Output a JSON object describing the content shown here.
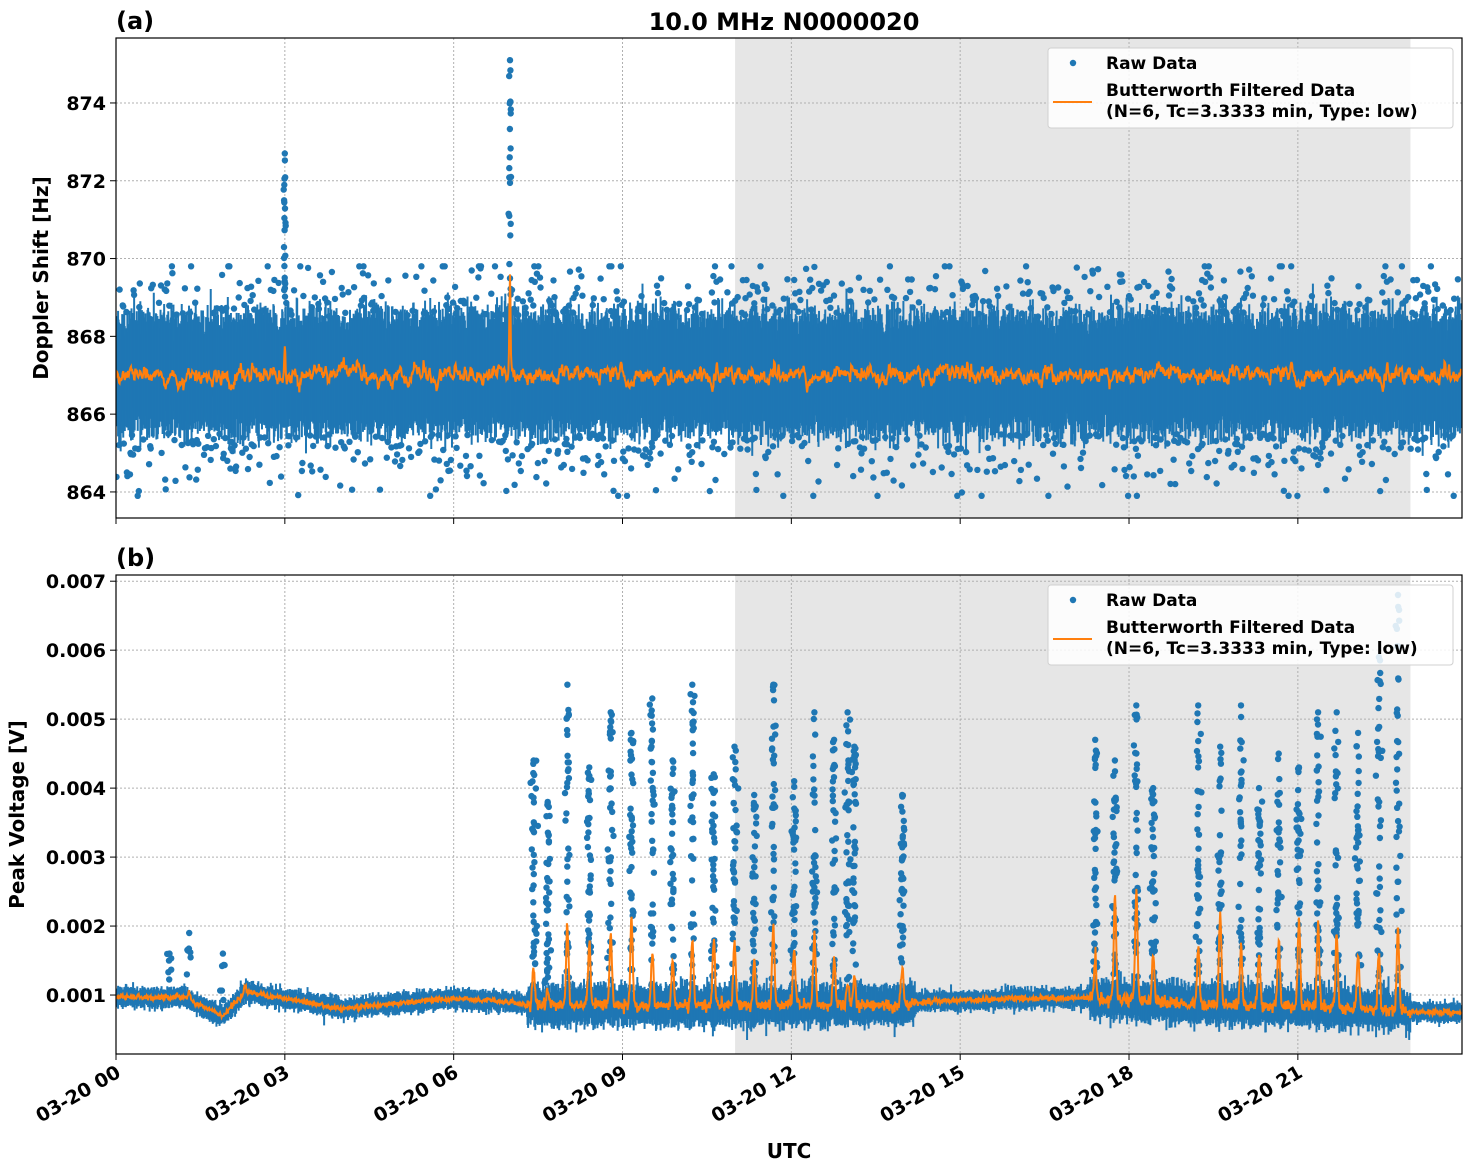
{
  "chart_data": [
    {
      "type": "scatter",
      "panel_label": "(a)",
      "title": "10.0 MHz N0000020",
      "xlabel": "",
      "ylabel": "Doppler Shift [Hz]",
      "xlim": [
        "03-20 00:00",
        "03-20 23:55"
      ],
      "ylim": [
        863.33,
        875.67
      ],
      "x_ticks": [
        "03-20 00",
        "03-20 03",
        "03-20 06",
        "03-20 09",
        "03-20 12",
        "03-20 15",
        "03-20 18",
        "03-20 21"
      ],
      "x_tick_hours": [
        0,
        3,
        6,
        9,
        12,
        15,
        18,
        21
      ],
      "y_ticks": [
        864,
        866,
        868,
        870,
        872,
        874
      ],
      "y_tick_labels": [
        "864",
        "866",
        "868",
        "870",
        "872",
        "874"
      ],
      "grid": true,
      "shaded_span_hours": [
        11.0,
        23.0
      ],
      "legend": {
        "placement": "top-right",
        "entries": [
          "Raw Data",
          "Butterworth Filtered Data",
          "(N=6, Tc=3.3333 min, Type: low)"
        ]
      },
      "colors": {
        "raw": "#1f77b4",
        "filtered": "#ff7f0e",
        "shade": "#e6e6e6"
      },
      "series": [
        {
          "name": "Raw Data",
          "kind": "points",
          "baseline": 867.0,
          "spread": 0.6,
          "min_outlier": 863.9,
          "max_outlier": 869.8,
          "spikes": [
            {
              "hour": 3.0,
              "max": 872.7
            },
            {
              "hour": 7.0,
              "max": 875.1
            }
          ]
        },
        {
          "name": "Butterworth Filtered Data",
          "kind": "line",
          "baseline": 867.0,
          "ripple": 0.3,
          "peaks": [
            {
              "hour": 3.0,
              "value": 867.8
            },
            {
              "hour": 7.0,
              "value": 869.7
            }
          ]
        }
      ]
    },
    {
      "type": "scatter",
      "panel_label": "(b)",
      "title": "",
      "xlabel": "UTC",
      "ylabel": "Peak Voltage [V]",
      "xlim": [
        "03-20 00:00",
        "03-20 23:55"
      ],
      "ylim": [
        0.000145,
        0.00709
      ],
      "x_ticks": [
        "03-20 00",
        "03-20 03",
        "03-20 06",
        "03-20 09",
        "03-20 12",
        "03-20 15",
        "03-20 18",
        "03-20 21"
      ],
      "x_tick_hours": [
        0,
        3,
        6,
        9,
        12,
        15,
        18,
        21
      ],
      "y_ticks": [
        0.001,
        0.002,
        0.003,
        0.004,
        0.005,
        0.006,
        0.007
      ],
      "y_tick_labels": [
        "0.001",
        "0.002",
        "0.003",
        "0.004",
        "0.005",
        "0.006",
        "0.007"
      ],
      "grid": true,
      "shaded_span_hours": [
        11.0,
        23.0
      ],
      "legend": {
        "placement": "top-right",
        "entries": [
          "Raw Data",
          "Butterworth Filtered Data",
          "(N=6, Tc=3.3333 min, Type: low)"
        ]
      },
      "colors": {
        "raw": "#1f77b4",
        "filtered": "#ff7f0e",
        "shade": "#e6e6e6"
      },
      "baseline": [
        [
          0,
          0.00097
        ],
        [
          1.2,
          0.00097
        ],
        [
          1.4,
          0.00088
        ],
        [
          1.9,
          0.0007
        ],
        [
          2.3,
          0.00105
        ],
        [
          2.6,
          0.001
        ],
        [
          3.2,
          0.00092
        ],
        [
          4.0,
          0.0008
        ],
        [
          5.0,
          0.00088
        ],
        [
          6.0,
          0.00095
        ],
        [
          7.0,
          0.0009
        ],
        [
          7.4,
          0.00085
        ],
        [
          14.0,
          0.00085
        ],
        [
          14.3,
          0.0009
        ],
        [
          16.0,
          0.00095
        ],
        [
          17.3,
          0.00096
        ],
        [
          19.0,
          0.00088
        ],
        [
          22.9,
          0.00078
        ],
        [
          23.1,
          0.00075
        ],
        [
          23.95,
          0.00075
        ]
      ],
      "series": [
        {
          "name": "Raw Data",
          "kind": "points",
          "spikes": [
            {
              "hour": 0.95,
              "max": 0.0016
            },
            {
              "hour": 1.3,
              "max": 0.0019
            },
            {
              "hour": 1.9,
              "max": 0.0016
            },
            {
              "hour": 7.42,
              "max": 0.0044
            },
            {
              "hour": 7.67,
              "max": 0.0038
            },
            {
              "hour": 8.02,
              "max": 0.0055
            },
            {
              "hour": 8.41,
              "max": 0.0043
            },
            {
              "hour": 8.79,
              "max": 0.0051
            },
            {
              "hour": 9.16,
              "max": 0.0048
            },
            {
              "hour": 9.53,
              "max": 0.0053
            },
            {
              "hour": 9.89,
              "max": 0.0044
            },
            {
              "hour": 10.24,
              "max": 0.0055
            },
            {
              "hour": 10.62,
              "max": 0.0042
            },
            {
              "hour": 10.99,
              "max": 0.0046
            },
            {
              "hour": 11.34,
              "max": 0.0039
            },
            {
              "hour": 11.68,
              "max": 0.0055
            },
            {
              "hour": 12.05,
              "max": 0.0041
            },
            {
              "hour": 12.41,
              "max": 0.0051
            },
            {
              "hour": 12.76,
              "max": 0.0047
            },
            {
              "hour": 13.0,
              "max": 0.0051
            },
            {
              "hour": 13.12,
              "max": 0.0046
            },
            {
              "hour": 13.97,
              "max": 0.0039
            },
            {
              "hour": 17.4,
              "max": 0.0047
            },
            {
              "hour": 17.75,
              "max": 0.0044
            },
            {
              "hour": 18.13,
              "max": 0.0052
            },
            {
              "hour": 18.43,
              "max": 0.004
            },
            {
              "hour": 19.23,
              "max": 0.0052
            },
            {
              "hour": 19.62,
              "max": 0.0046
            },
            {
              "hour": 19.99,
              "max": 0.0052
            },
            {
              "hour": 20.31,
              "max": 0.004
            },
            {
              "hour": 20.66,
              "max": 0.0045
            },
            {
              "hour": 21.02,
              "max": 0.0043
            },
            {
              "hour": 21.36,
              "max": 0.0051
            },
            {
              "hour": 21.69,
              "max": 0.0051
            },
            {
              "hour": 22.07,
              "max": 0.0048
            },
            {
              "hour": 22.44,
              "max": 0.0059
            },
            {
              "hour": 22.78,
              "max": 0.0068
            }
          ]
        },
        {
          "name": "Butterworth Filtered Data",
          "kind": "line",
          "peaks": [
            {
              "hour": 1.3,
              "value": 0.00105
            },
            {
              "hour": 2.3,
              "value": 0.00112
            },
            {
              "hour": 7.42,
              "value": 0.0014
            },
            {
              "hour": 7.67,
              "value": 0.0011
            },
            {
              "hour": 8.02,
              "value": 0.002
            },
            {
              "hour": 8.41,
              "value": 0.0018
            },
            {
              "hour": 8.79,
              "value": 0.0019
            },
            {
              "hour": 9.16,
              "value": 0.0021
            },
            {
              "hour": 9.53,
              "value": 0.0016
            },
            {
              "hour": 9.89,
              "value": 0.0015
            },
            {
              "hour": 10.24,
              "value": 0.0018
            },
            {
              "hour": 10.62,
              "value": 0.0018
            },
            {
              "hour": 10.99,
              "value": 0.0018
            },
            {
              "hour": 11.34,
              "value": 0.0015
            },
            {
              "hour": 11.68,
              "value": 0.002
            },
            {
              "hour": 12.05,
              "value": 0.0017
            },
            {
              "hour": 12.41,
              "value": 0.0019
            },
            {
              "hour": 12.76,
              "value": 0.0016
            },
            {
              "hour": 13.0,
              "value": 0.0012
            },
            {
              "hour": 13.12,
              "value": 0.0013
            },
            {
              "hour": 13.97,
              "value": 0.0014
            },
            {
              "hour": 17.4,
              "value": 0.0015
            },
            {
              "hour": 17.75,
              "value": 0.0024
            },
            {
              "hour": 18.13,
              "value": 0.0025
            },
            {
              "hour": 18.43,
              "value": 0.0016
            },
            {
              "hour": 19.23,
              "value": 0.0017
            },
            {
              "hour": 19.62,
              "value": 0.0022
            },
            {
              "hour": 19.99,
              "value": 0.0017
            },
            {
              "hour": 20.31,
              "value": 0.0016
            },
            {
              "hour": 20.66,
              "value": 0.0018
            },
            {
              "hour": 21.02,
              "value": 0.0021
            },
            {
              "hour": 21.36,
              "value": 0.002
            },
            {
              "hour": 21.69,
              "value": 0.0019
            },
            {
              "hour": 22.07,
              "value": 0.0016
            },
            {
              "hour": 22.44,
              "value": 0.0016
            },
            {
              "hour": 22.78,
              "value": 0.002
            }
          ]
        }
      ]
    }
  ]
}
